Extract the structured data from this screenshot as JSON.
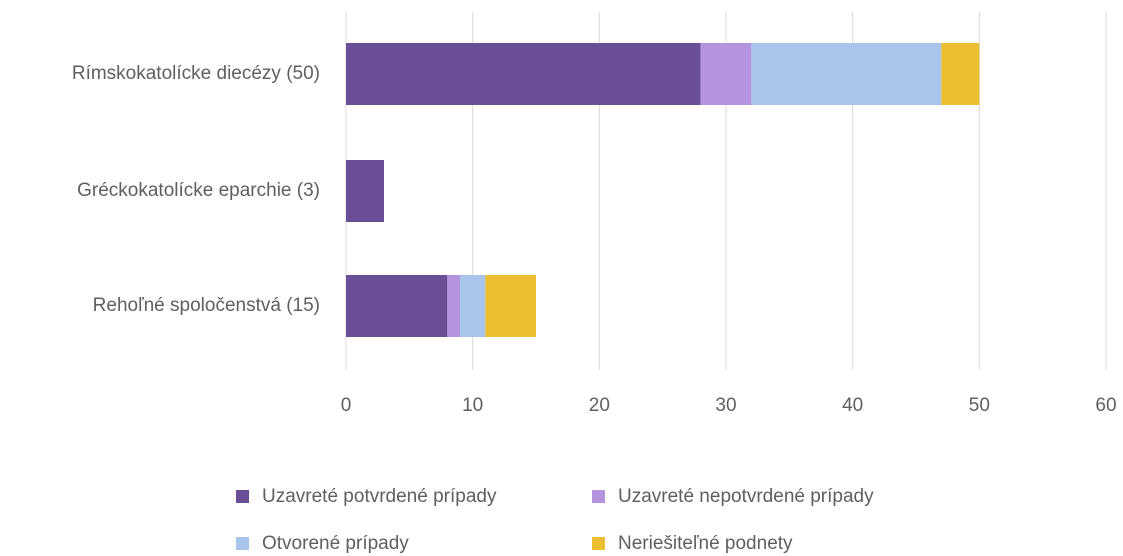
{
  "chart_data": {
    "type": "bar",
    "orientation": "horizontal",
    "stacked": true,
    "categories": [
      "Rímskokatolícke diecézy (50)",
      "Gréckokatolícke eparchie (3)",
      "Rehoľné spoločenstvá (15)"
    ],
    "series": [
      {
        "name": "Uzavreté potvrdené prípady",
        "color": "#6a4f96",
        "values": [
          28,
          3,
          8
        ]
      },
      {
        "name": "Uzavreté nepotvrdené prípady",
        "color": "#b594df",
        "values": [
          4,
          0,
          1
        ]
      },
      {
        "name": "Otvorené prípady",
        "color": "#a9c5ec",
        "values": [
          15,
          0,
          2
        ]
      },
      {
        "name": "Neriešiteľné podnety",
        "color": "#ecbe31",
        "values": [
          3,
          0,
          4
        ]
      }
    ],
    "xlim": [
      0,
      60
    ],
    "xticks": [
      0,
      10,
      20,
      30,
      40,
      50,
      60
    ],
    "grid": true,
    "legend": "bottom"
  }
}
